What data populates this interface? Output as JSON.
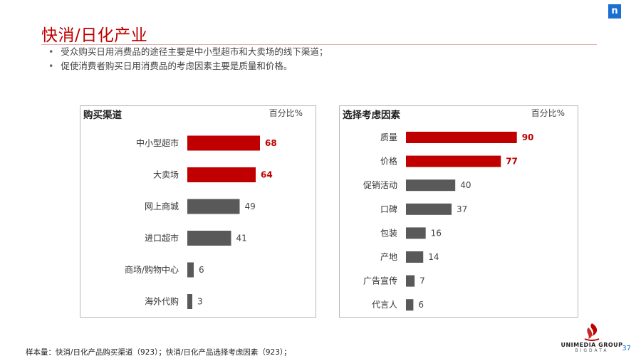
{
  "header": {
    "title": "快消/日化产业",
    "bullets": [
      "受众购买日用消费品的途径主要是中小型超市和大卖场的线下渠道；",
      "促使消费者购买日用消费品的考虑因素主要是质量和价格。"
    ]
  },
  "colors": {
    "highlight": "#c00000",
    "normal": "#595959",
    "title": "#c00000"
  },
  "chart_data": [
    {
      "type": "bar",
      "orientation": "horizontal",
      "title": "购买渠道",
      "unit": "百分比%",
      "categories": [
        "中小型超市",
        "大卖场",
        "网上商城",
        "进口超市",
        "商场/购物中心",
        "海外代购"
      ],
      "values": [
        68,
        64,
        49,
        41,
        6,
        3
      ],
      "highlighted": [
        true,
        true,
        false,
        false,
        false,
        false
      ],
      "xlim": [
        0,
        100
      ],
      "grid": false
    },
    {
      "type": "bar",
      "orientation": "horizontal",
      "title": "选择考虑因素",
      "unit": "百分比%",
      "categories": [
        "质量",
        "价格",
        "促销活动",
        "口碑",
        "包装",
        "产地",
        "广告宣传",
        "代言人"
      ],
      "values": [
        90,
        77,
        40,
        37,
        16,
        14,
        7,
        6
      ],
      "highlighted": [
        true,
        true,
        false,
        false,
        false,
        false,
        false,
        false
      ],
      "xlim": [
        0,
        100
      ],
      "grid": false
    }
  ],
  "footnote": "样本量：快消/日化产品购买渠道（923）；快消/日化产品选择考虑因素（923）；",
  "brand": {
    "name": "UNIMEDIA GROUP",
    "sub": "BIGDATA",
    "page": "37",
    "corner_logo": "n"
  }
}
